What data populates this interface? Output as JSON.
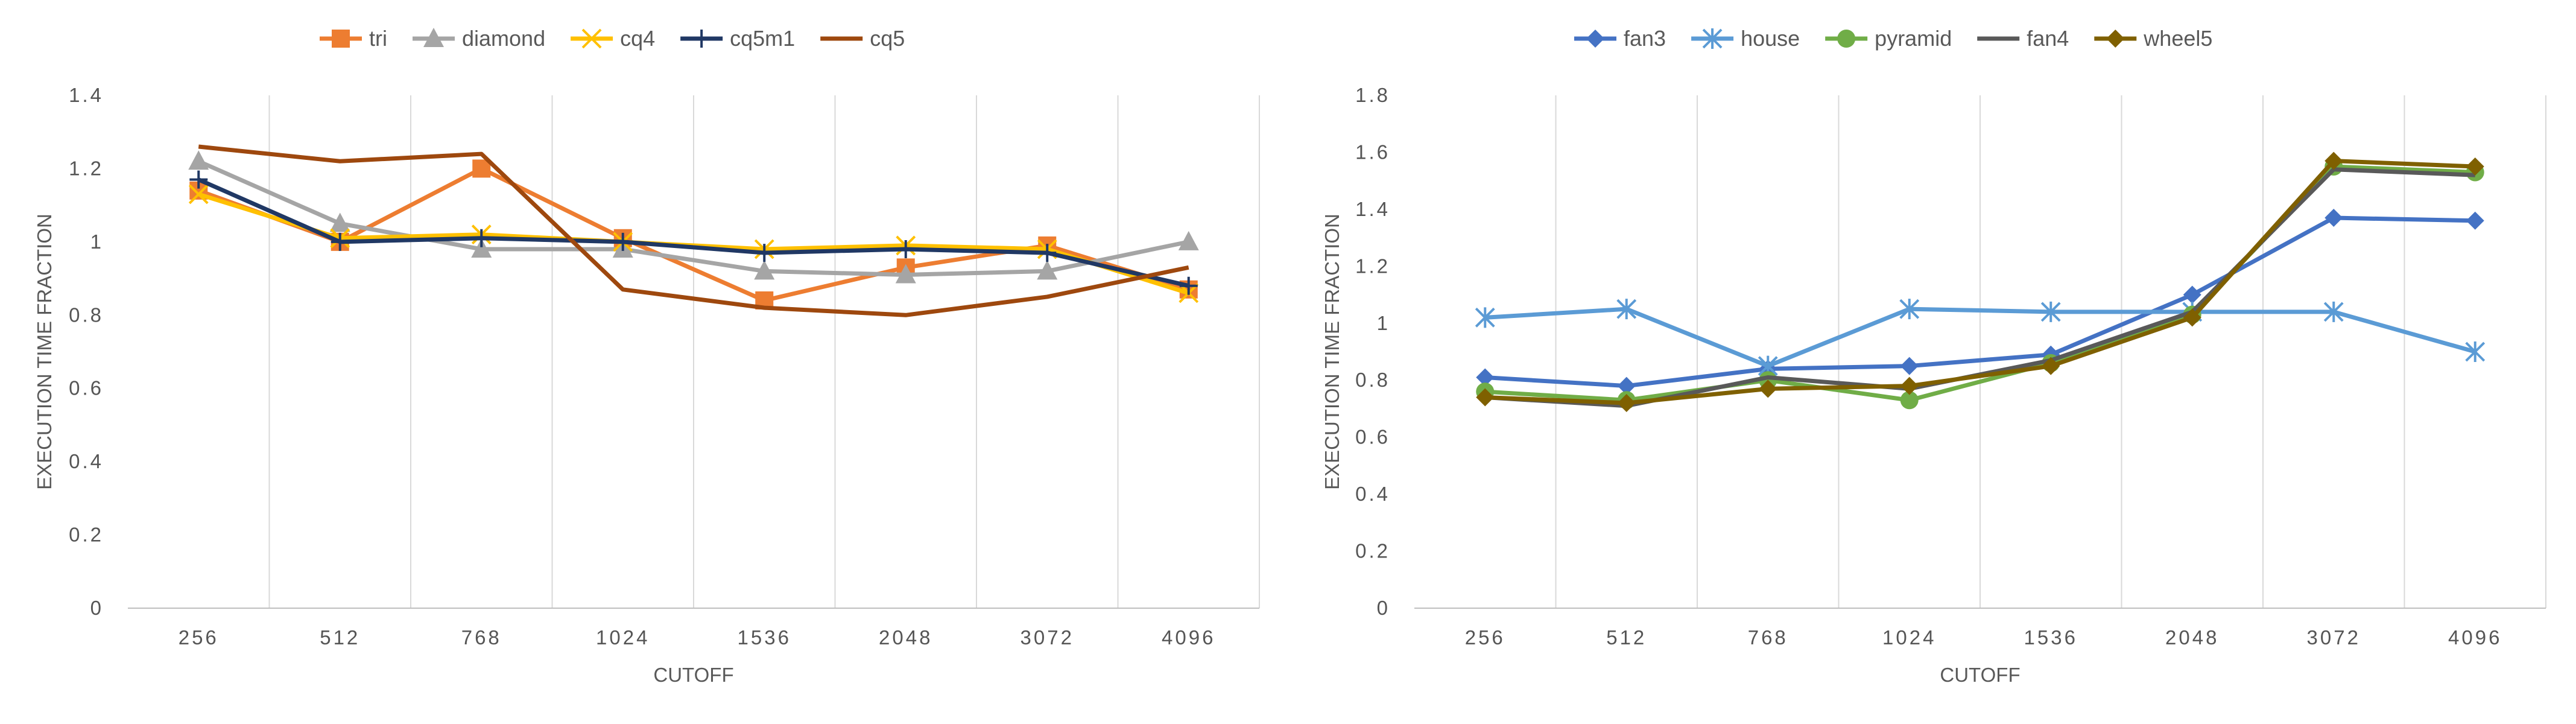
{
  "chart_data": [
    {
      "type": "line",
      "title": "",
      "xlabel": "CUTOFF",
      "ylabel": "EXECUTION TIME FRACTION",
      "categories": [
        "256",
        "512",
        "768",
        "1024",
        "1536",
        "2048",
        "3072",
        "4096"
      ],
      "ylim": [
        0,
        1.4
      ],
      "yticks": [
        "0",
        "0.2",
        "0.4",
        "0.6",
        "0.8",
        "1",
        "1.2",
        "1.4"
      ],
      "grid": "vertical",
      "legend": "top",
      "series": [
        {
          "name": "tri",
          "color": "#ED7D31",
          "marker": "square",
          "values": [
            1.14,
            1.0,
            1.2,
            1.01,
            0.84,
            0.93,
            0.99,
            0.87
          ]
        },
        {
          "name": "diamond",
          "color": "#A5A5A5",
          "marker": "triangle",
          "values": [
            1.22,
            1.05,
            0.98,
            0.98,
            0.92,
            0.91,
            0.92,
            1.0
          ]
        },
        {
          "name": "cq4",
          "color": "#FFC000",
          "marker": "x",
          "values": [
            1.13,
            1.01,
            1.02,
            1.0,
            0.98,
            0.99,
            0.98,
            0.86
          ]
        },
        {
          "name": "cq5m1",
          "color": "#203864",
          "marker": "plus",
          "values": [
            1.17,
            1.0,
            1.01,
            1.0,
            0.97,
            0.98,
            0.97,
            0.88
          ]
        },
        {
          "name": "cq5",
          "color": "#9E480E",
          "marker": "none",
          "values": [
            1.26,
            1.22,
            1.24,
            0.87,
            0.82,
            0.8,
            0.85,
            0.93
          ]
        }
      ]
    },
    {
      "type": "line",
      "title": "",
      "xlabel": "CUTOFF",
      "ylabel": "EXECUTION TIME FRACTION",
      "categories": [
        "256",
        "512",
        "768",
        "1024",
        "1536",
        "2048",
        "3072",
        "4096"
      ],
      "ylim": [
        0,
        1.8
      ],
      "yticks": [
        "0",
        "0.2",
        "0.4",
        "0.6",
        "0.8",
        "1",
        "1.2",
        "1.4",
        "1.6",
        "1.8"
      ],
      "grid": "vertical",
      "legend": "top",
      "series": [
        {
          "name": "fan3",
          "color": "#4472C4",
          "marker": "diamond",
          "values": [
            0.81,
            0.78,
            0.84,
            0.85,
            0.89,
            1.1,
            1.37,
            1.36
          ]
        },
        {
          "name": "house",
          "color": "#5B9BD5",
          "marker": "asterisk",
          "values": [
            1.02,
            1.05,
            0.85,
            1.05,
            1.04,
            1.04,
            1.04,
            0.9
          ]
        },
        {
          "name": "pyramid",
          "color": "#70AD47",
          "marker": "circle",
          "values": [
            0.76,
            0.73,
            0.8,
            0.73,
            0.86,
            1.03,
            1.55,
            1.53
          ]
        },
        {
          "name": "fan4",
          "color": "#595959",
          "marker": "none",
          "values": [
            0.74,
            0.71,
            0.81,
            0.77,
            0.87,
            1.04,
            1.54,
            1.52
          ]
        },
        {
          "name": "wheel5",
          "color": "#7F6000",
          "marker": "diamond",
          "values": [
            0.74,
            0.72,
            0.77,
            0.78,
            0.85,
            1.02,
            1.57,
            1.55
          ]
        }
      ]
    }
  ]
}
